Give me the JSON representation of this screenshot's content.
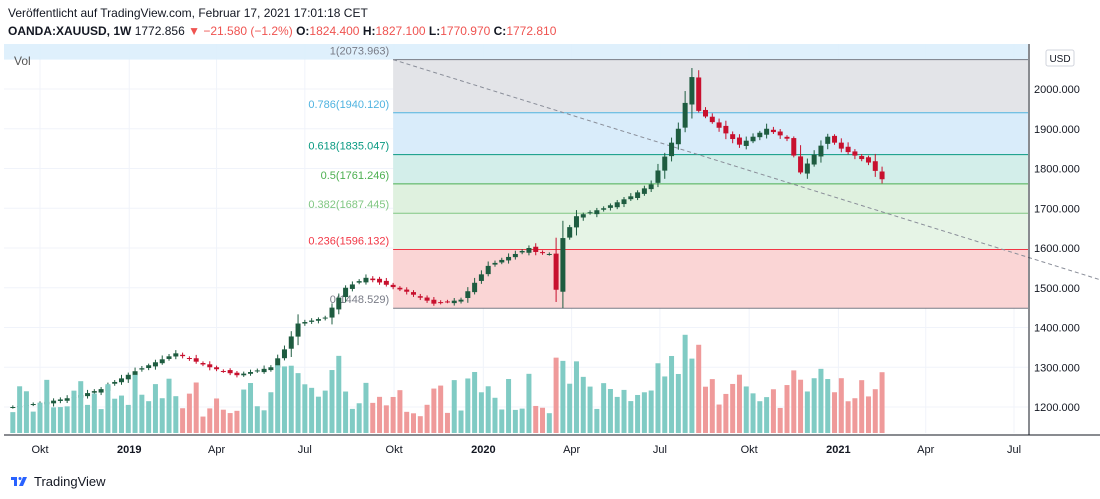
{
  "header": {
    "published": "Veröffentlicht auf TradingView.com, Februar 17, 2021 17:01:18 CET",
    "symbol": "OANDA:XAUUSD, 1W",
    "price": "1772.856",
    "change": "−21.580 (−1.2%)",
    "o_label": "O:",
    "o_value": "1824.400",
    "h_label": "H:",
    "h_value": "1827.100",
    "l_label": "L:",
    "l_value": "1770.970",
    "c_label": "C:",
    "c_value": "1772.810"
  },
  "colors": {
    "up": "#26a69a",
    "down": "#ef5350",
    "upCandle": "#1e5c40",
    "downCandle": "#c8102e",
    "volUp": "#80cbc4",
    "volDown": "#ef9a9a"
  },
  "chart_data": {
    "type": "candlestick",
    "y_axis": {
      "ticks": [
        "1200.000",
        "1300.000",
        "1400.000",
        "1500.000",
        "1600.000",
        "1700.000",
        "1800.000",
        "1900.000",
        "2000.000"
      ],
      "ylim": [
        1110,
        2095
      ],
      "currency": "USD"
    },
    "x_axis": {
      "ticks": [
        "Okt",
        "2019",
        "Apr",
        "Jul",
        "Okt",
        "2020",
        "Apr",
        "Jul",
        "Okt",
        "2021",
        "Apr",
        "Jul"
      ],
      "bold": [
        "2019",
        "2020",
        "2021"
      ]
    },
    "volume_label": "Vol",
    "anchors": [
      [
        "2018-09-03",
        1200
      ],
      [
        "2018-10-01",
        1210
      ],
      [
        "2018-11-05",
        1225
      ],
      [
        "2018-12-03",
        1245
      ],
      [
        "2019-01-07",
        1290
      ],
      [
        "2019-02-18",
        1335
      ],
      [
        "2019-03-25",
        1300
      ],
      [
        "2019-04-22",
        1280
      ],
      [
        "2019-05-27",
        1300
      ],
      [
        "2019-06-10",
        1345
      ],
      [
        "2019-06-24",
        1410
      ],
      [
        "2019-07-22",
        1425
      ],
      [
        "2019-08-12",
        1500
      ],
      [
        "2019-09-02",
        1525
      ],
      [
        "2019-10-14",
        1490
      ],
      [
        "2019-11-11",
        1460
      ],
      [
        "2019-12-09",
        1470
      ],
      [
        "2020-01-06",
        1555
      ],
      [
        "2020-02-17",
        1600
      ],
      [
        "2020-02-24",
        1590
      ],
      [
        "2020-03-09",
        1585
      ],
      [
        "2020-03-16",
        1495
      ],
      [
        "2020-03-23",
        1625
      ],
      [
        "2020-04-06",
        1680
      ],
      [
        "2020-05-04",
        1700
      ],
      [
        "2020-06-01",
        1730
      ],
      [
        "2020-06-22",
        1760
      ],
      [
        "2020-07-20",
        1900
      ],
      [
        "2020-08-03",
        2030
      ],
      [
        "2020-08-10",
        1945
      ],
      [
        "2020-09-21",
        1860
      ],
      [
        "2020-10-19",
        1900
      ],
      [
        "2020-11-09",
        1875
      ],
      [
        "2020-11-23",
        1790
      ],
      [
        "2020-12-21",
        1880
      ],
      [
        "2021-01-04",
        1850
      ],
      [
        "2021-02-01",
        1815
      ],
      [
        "2021-02-15",
        1773
      ]
    ],
    "fib": {
      "start": "2019-09-30",
      "end": "2021-12-31",
      "levels": [
        {
          "ratio": "1",
          "price": 2073.963,
          "label": "1(2073.963)",
          "color": "#787b86"
        },
        {
          "ratio": "0.786",
          "price": 1940.12,
          "label": "0.786(1940.120)",
          "color": "#4fb3e0"
        },
        {
          "ratio": "0.618",
          "price": 1835.047,
          "label": "0.618(1835.047)",
          "color": "#089981"
        },
        {
          "ratio": "0.5",
          "price": 1761.246,
          "label": "0.5(1761.246)",
          "color": "#4caf50"
        },
        {
          "ratio": "0.382",
          "price": 1687.445,
          "label": "0.382(1687.445)",
          "color": "#81c784"
        },
        {
          "ratio": "0.236",
          "price": 1596.132,
          "label": "0.236(1596.132)",
          "color": "#f23645"
        },
        {
          "ratio": "0",
          "price": 1448.529,
          "label": "0(1448.529)",
          "color": "#787b86"
        }
      ]
    },
    "trendline": {
      "from": [
        "2019-09-30",
        2073.963
      ],
      "to": [
        "2021-12-31",
        1448.529
      ]
    }
  },
  "footer": {
    "brand": "TradingView"
  }
}
